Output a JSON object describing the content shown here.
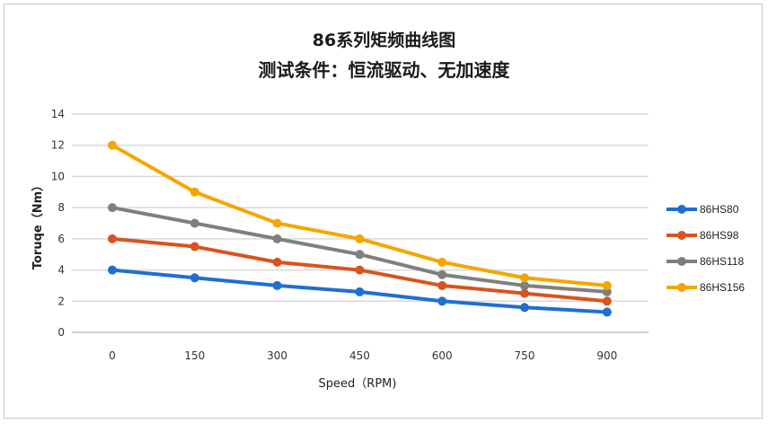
{
  "chart_data": {
    "type": "line",
    "title": "86系列矩频曲线图",
    "subtitle": "测试条件：恒流驱动、无加速度",
    "xlabel": "Speed（RPM)",
    "ylabel": "Toruqe（Nm）",
    "categories": [
      "0",
      "150",
      "300",
      "450",
      "600",
      "750",
      "900"
    ],
    "ylim": [
      0,
      14
    ],
    "yticks": [
      "0",
      "2",
      "4",
      "6",
      "8",
      "10",
      "12",
      "14"
    ],
    "grid": true,
    "legend_position": "right",
    "series": [
      {
        "name": "86HS80",
        "color": "#1f6fd1",
        "values": [
          4.0,
          3.5,
          3.0,
          2.6,
          2.0,
          1.6,
          1.3
        ]
      },
      {
        "name": "86HS98",
        "color": "#d9531e",
        "values": [
          6.0,
          5.5,
          4.5,
          4.0,
          3.0,
          2.5,
          2.0
        ]
      },
      {
        "name": "86HS118",
        "color": "#7f7f7f",
        "values": [
          8.0,
          7.0,
          6.0,
          5.0,
          3.7,
          3.0,
          2.6
        ]
      },
      {
        "name": "86HS156",
        "color": "#f5a500",
        "values": [
          12.0,
          9.0,
          7.0,
          6.0,
          4.5,
          3.5,
          3.0
        ]
      }
    ]
  }
}
